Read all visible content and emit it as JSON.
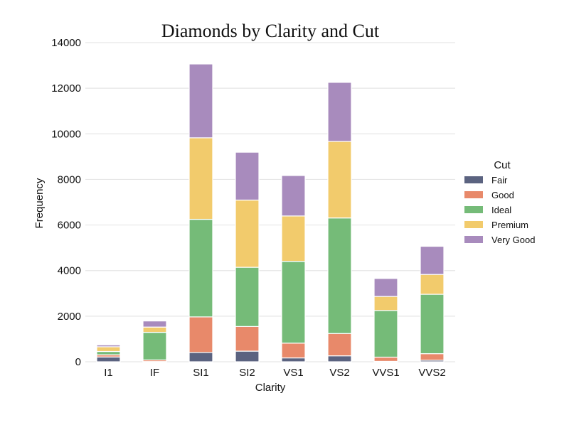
{
  "chart_data": {
    "type": "bar",
    "stacked": true,
    "title": "Diamonds by Clarity and Cut",
    "xlabel": "Clarity",
    "ylabel": "Frequency",
    "ylim": [
      0,
      14000
    ],
    "yticks": [
      0,
      2000,
      4000,
      6000,
      8000,
      10000,
      12000,
      14000
    ],
    "grid": true,
    "legend_title": "Cut",
    "legend_position": "right",
    "categories": [
      "I1",
      "IF",
      "SI1",
      "SI2",
      "VS1",
      "VS2",
      "VVS1",
      "VVS2"
    ],
    "series": [
      {
        "name": "Fair",
        "color": "#5b6380",
        "values": [
          210,
          9,
          408,
          466,
          170,
          261,
          17,
          69
        ]
      },
      {
        "name": "Good",
        "color": "#e8896a",
        "values": [
          96,
          71,
          1560,
          1081,
          648,
          978,
          186,
          286
        ]
      },
      {
        "name": "Ideal",
        "color": "#75bb78",
        "values": [
          146,
          1212,
          4282,
          2598,
          3589,
          5071,
          2047,
          2606
        ]
      },
      {
        "name": "Premium",
        "color": "#f2cb6c",
        "values": [
          205,
          230,
          3575,
          2949,
          1989,
          3357,
          616,
          870
        ]
      },
      {
        "name": "Very Good",
        "color": "#a88bbd",
        "values": [
          84,
          268,
          3240,
          2100,
          1775,
          2591,
          789,
          1235
        ]
      }
    ]
  }
}
